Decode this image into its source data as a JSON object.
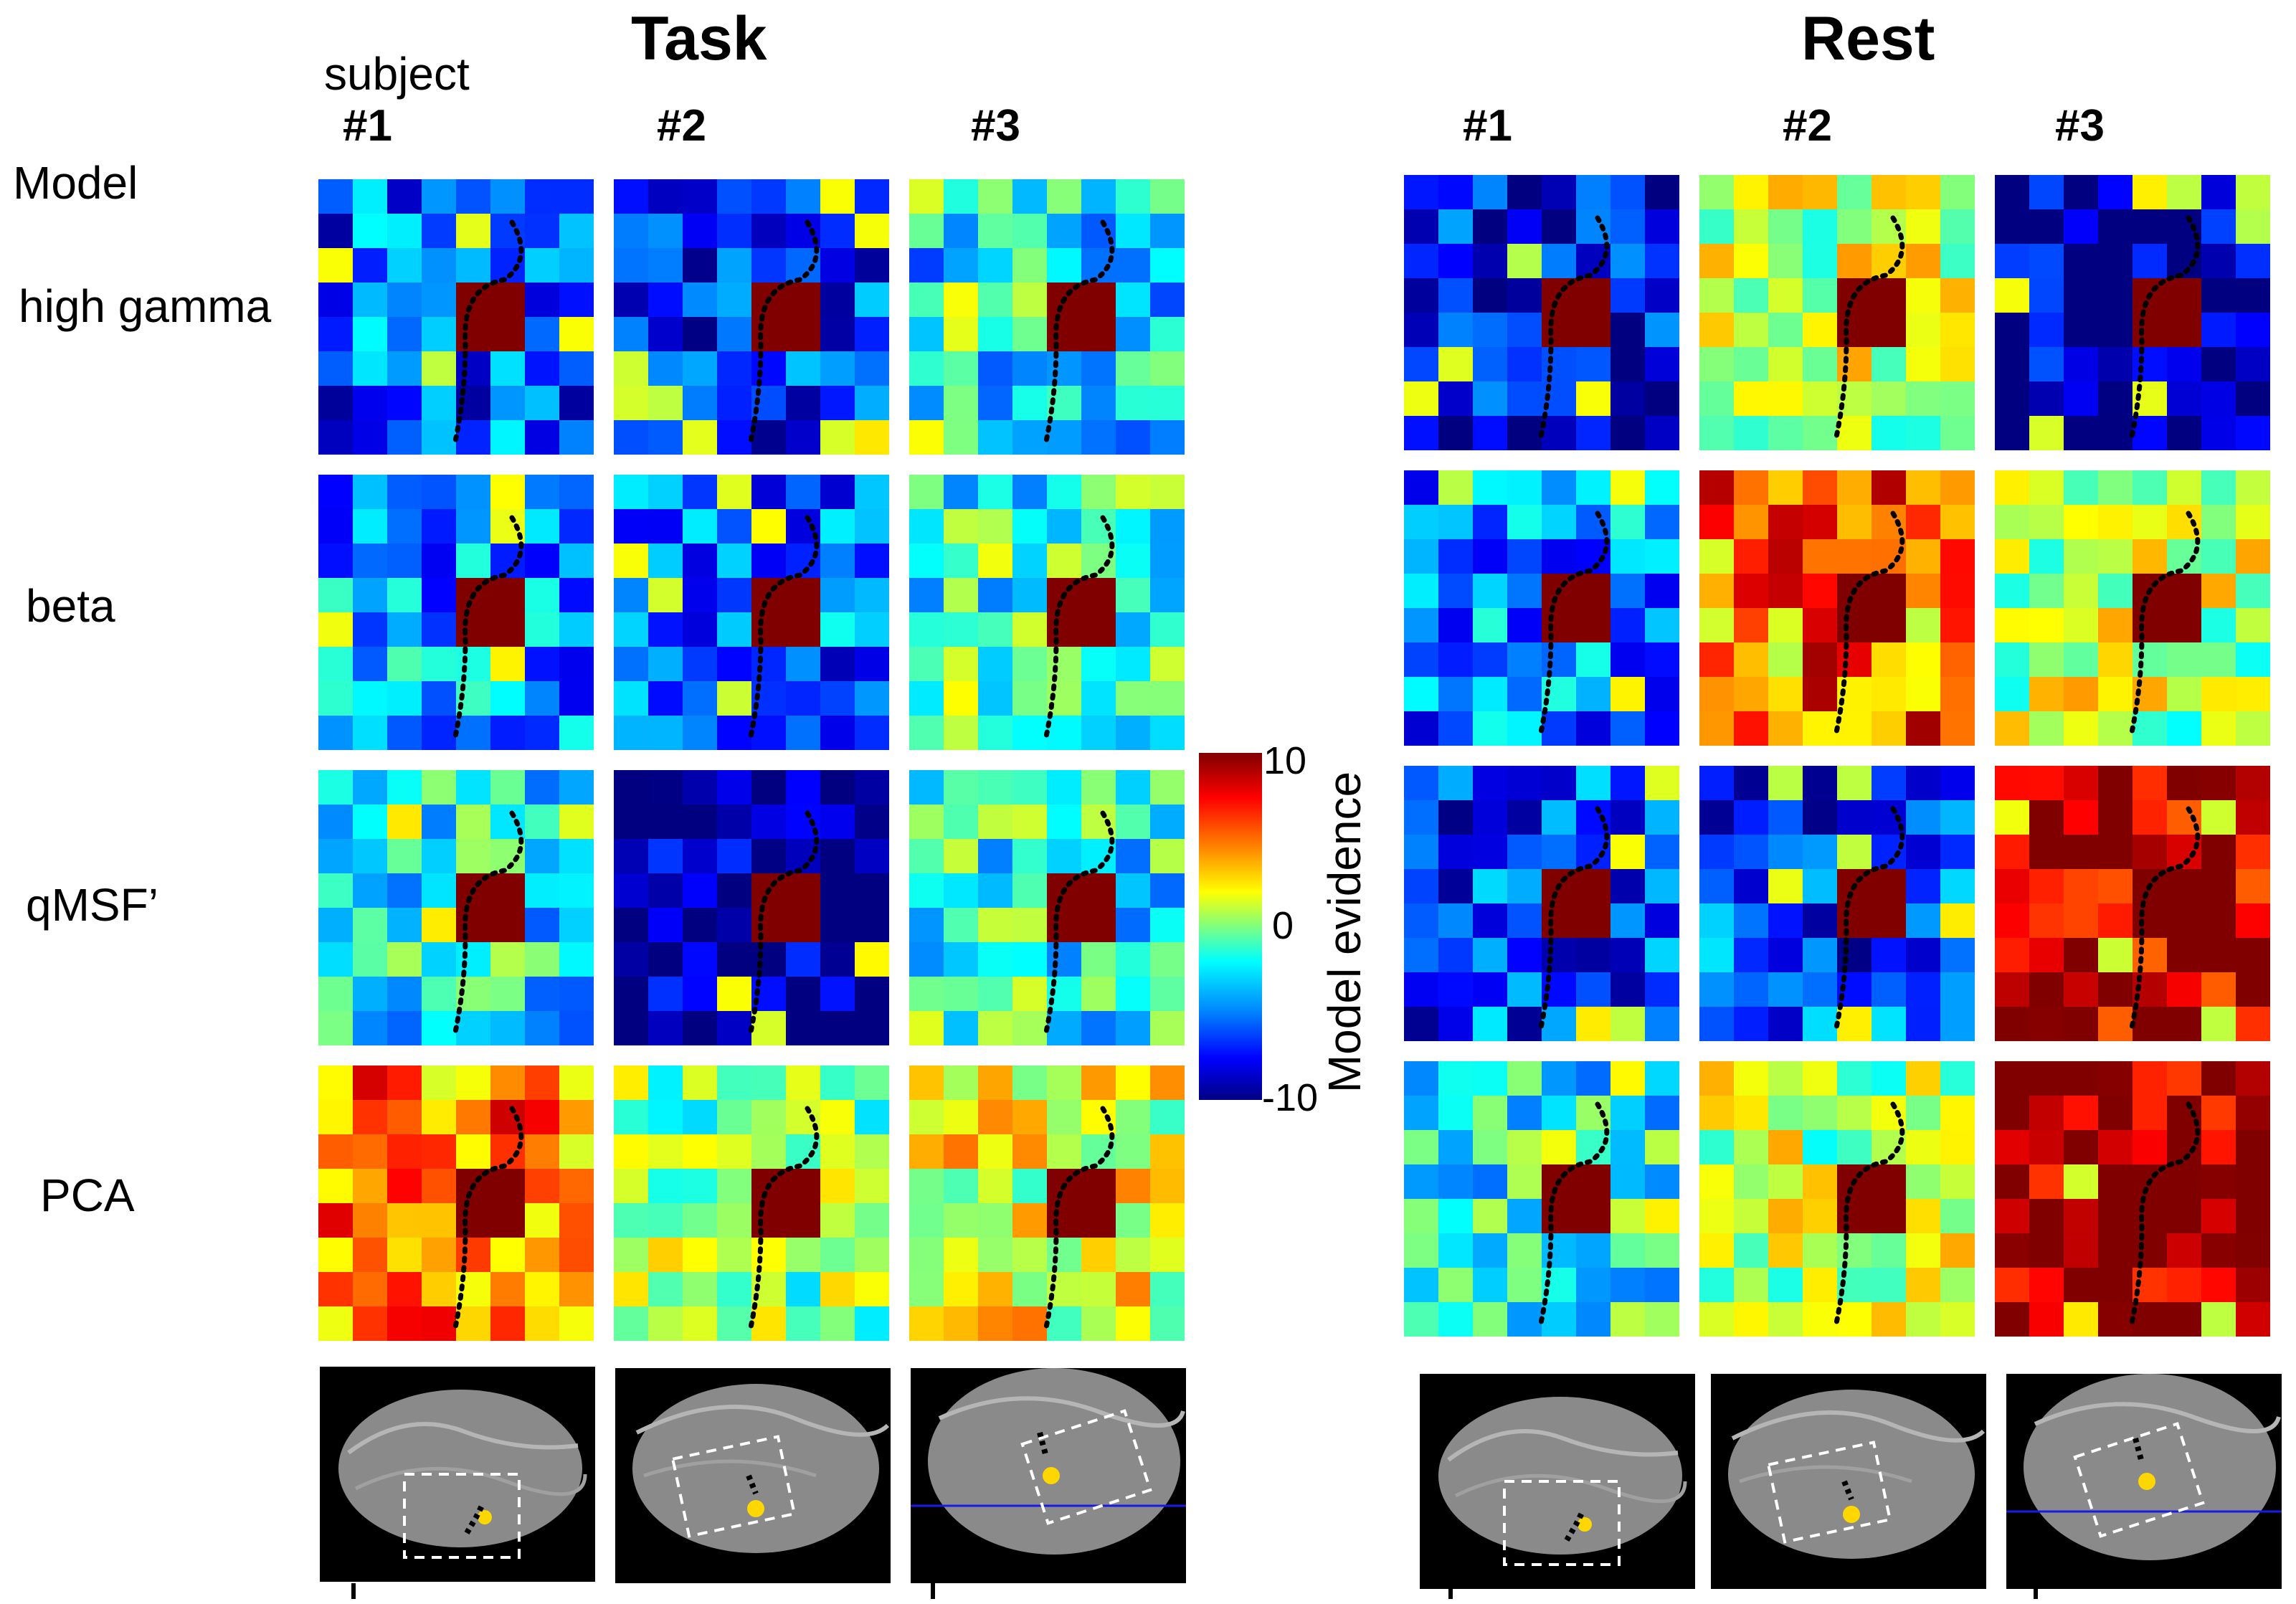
{
  "figure": {
    "sections": [
      {
        "title": "Task",
        "subjects": [
          "#1",
          "#2",
          "#3"
        ]
      },
      {
        "title": "Rest",
        "subjects": [
          "#1",
          "#2",
          "#3"
        ]
      }
    ],
    "subject_caption": "subject",
    "model_caption": "Model",
    "rows": [
      "high gamma",
      "beta",
      "qMSF’",
      "PCA"
    ],
    "colorbar": {
      "label": "Model evidence",
      "max_label": "10",
      "mid_label": "0",
      "min_label": "-10",
      "range": [
        -10,
        10
      ]
    },
    "colors": {
      "dark_red": "#800000",
      "dark_blue": "#00008c",
      "green": "#40e080",
      "boundary": "#000000"
    }
  }
}
